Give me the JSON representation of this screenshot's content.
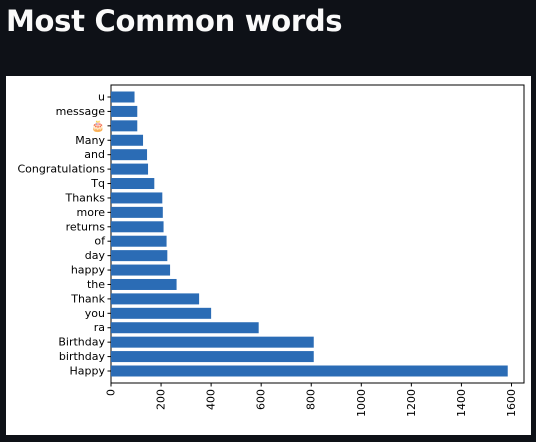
{
  "page": {
    "title": "Most Common words"
  },
  "colors": {
    "background": "#0e1117",
    "title": "#fafafa",
    "bar": "#2b6cb5",
    "figure_background": "#ffffff"
  },
  "chart_data": {
    "type": "bar",
    "orientation": "horizontal",
    "title": "",
    "xlabel": "",
    "ylabel": "",
    "categories": [
      "Happy",
      "birthday",
      "Birthday",
      "ra",
      "you",
      "Thank",
      "the",
      "happy",
      "day",
      "of",
      "returns",
      "more",
      "Thanks",
      "Tq",
      "Congratulations",
      "and",
      "Many",
      "🎂",
      "message",
      "u"
    ],
    "values": [
      1585,
      810,
      810,
      590,
      400,
      352,
      262,
      236,
      225,
      222,
      210,
      207,
      205,
      173,
      148,
      144,
      128,
      105,
      105,
      94
    ],
    "xlim": [
      0,
      1650
    ],
    "xticks": [
      "0",
      "200",
      "400",
      "600",
      "800",
      "1000",
      "1200",
      "1400",
      "1600"
    ],
    "xtick_values": [
      0,
      200,
      400,
      600,
      800,
      1000,
      1200,
      1400,
      1600
    ],
    "xtick_rotation": "vertical",
    "grid": false,
    "legend": "none"
  }
}
